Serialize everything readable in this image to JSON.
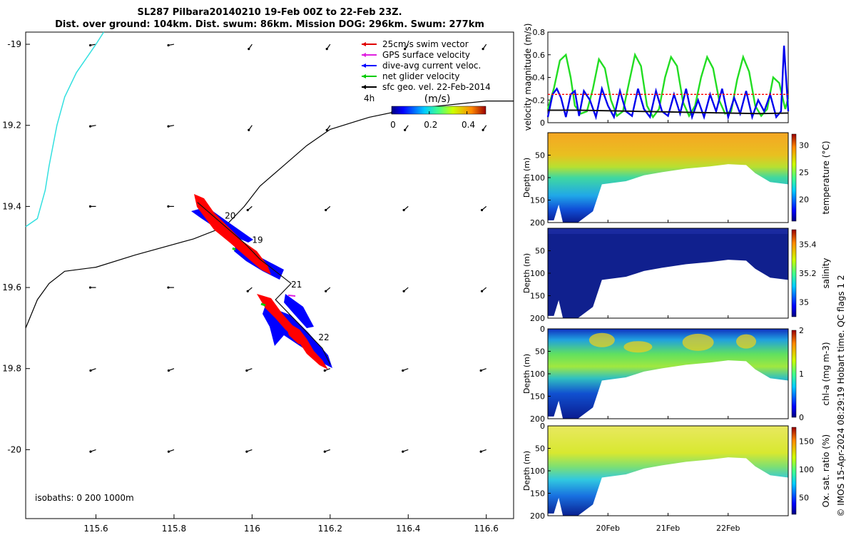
{
  "title": {
    "line1": "SL287 Pilbara20140210 19-Feb 00Z to 22-Feb 23Z.",
    "line2": "Dist. over ground: 104km. Dist. swum: 86km. Mission DOG: 296km. Swum: 277km"
  },
  "side_note": "© IMOS 15-Apr-2024 08:29:19 Hobart time. QC flags 1  2",
  "chart_data": [
    {
      "type": "scatter",
      "name": "track-map",
      "x_ticks": [
        "115.6",
        "115.8",
        "116",
        "116.2",
        "116.4",
        "116.6"
      ],
      "x_tick_values": [
        115.6,
        115.8,
        116.0,
        116.2,
        116.4,
        116.6
      ],
      "y_ticks": [
        "-19",
        "19.2",
        "19.4",
        "19.6",
        "19.8",
        "-20"
      ],
      "y_tick_values": [
        -19.0,
        -19.2,
        -19.4,
        -19.6,
        -19.8,
        -20.0
      ],
      "xlim": [
        115.42,
        116.67
      ],
      "ylim": [
        -20.17,
        -18.97
      ],
      "legend": {
        "placement": "top-right",
        "entries": [
          {
            "label": "25cm/s swim vector",
            "color": "#e00000"
          },
          {
            "label": "GPS surface velocity",
            "color": "#e020e0"
          },
          {
            "label": "dive-avg current veloc.",
            "color": "#0000ff"
          },
          {
            "label": "net glider velocity",
            "color": "#00cc00"
          },
          {
            "label": "sfc geo. vel. 22-Feb-2014",
            "color": "#000000"
          }
        ],
        "interval_label": "4h"
      },
      "colorbar": {
        "label": "(m/s)",
        "ticks": [
          "0",
          "0.2",
          "0.4"
        ],
        "tick_values": [
          0,
          0.2,
          0.4
        ],
        "range": [
          0,
          0.5
        ]
      },
      "isobath_label": "isobaths: 0   200  1000m",
      "day_labels": [
        {
          "text": "20",
          "lon": 115.93,
          "lat": -19.43
        },
        {
          "text": "19",
          "lon": 116.0,
          "lat": -19.49
        },
        {
          "text": "21",
          "lon": 116.1,
          "lat": -19.6
        },
        {
          "text": "22",
          "lon": 116.17,
          "lat": -19.73
        }
      ],
      "glider_track": [
        [
          115.86,
          -19.39
        ],
        [
          115.92,
          -19.44
        ],
        [
          115.98,
          -19.49
        ],
        [
          116.02,
          -19.53
        ],
        [
          116.06,
          -19.56
        ],
        [
          116.1,
          -19.59
        ],
        [
          116.06,
          -19.63
        ],
        [
          116.1,
          -19.67
        ],
        [
          116.14,
          -19.71
        ],
        [
          116.18,
          -19.75
        ],
        [
          116.2,
          -19.79
        ]
      ],
      "coastline_cyan": [
        [
          115.42,
          -19.45
        ],
        [
          115.45,
          -19.43
        ],
        [
          115.47,
          -19.36
        ],
        [
          115.48,
          -19.3
        ],
        [
          115.5,
          -19.2
        ],
        [
          115.52,
          -19.13
        ],
        [
          115.55,
          -19.07
        ],
        [
          115.6,
          -19.0
        ],
        [
          115.62,
          -18.97
        ]
      ],
      "isobath_black": [
        [
          115.42,
          -19.7
        ],
        [
          115.45,
          -19.63
        ],
        [
          115.48,
          -19.59
        ],
        [
          115.52,
          -19.56
        ],
        [
          115.6,
          -19.55
        ],
        [
          115.7,
          -19.52
        ],
        [
          115.85,
          -19.48
        ],
        [
          115.93,
          -19.45
        ],
        [
          115.98,
          -19.4
        ],
        [
          116.02,
          -19.35
        ],
        [
          116.08,
          -19.3
        ],
        [
          116.14,
          -19.25
        ],
        [
          116.2,
          -19.21
        ],
        [
          116.3,
          -19.18
        ],
        [
          116.4,
          -19.16
        ],
        [
          116.5,
          -19.15
        ],
        [
          116.6,
          -19.14
        ],
        [
          116.67,
          -19.14
        ]
      ]
    },
    {
      "type": "line",
      "name": "velocity-magnitude",
      "ylabel": "velocity magnitude (m/s)",
      "y_ticks": [
        "0",
        "0.2",
        "0.4",
        "0.6",
        "0.8"
      ],
      "y_tick_values": [
        0,
        0.2,
        0.4,
        0.6,
        0.8
      ],
      "ylim": [
        0,
        0.8
      ],
      "xlim": [
        0,
        4
      ],
      "series": [
        {
          "color": "#22dd22",
          "x": [
            0,
            0.1,
            0.2,
            0.3,
            0.38,
            0.45,
            0.55,
            0.65,
            0.75,
            0.85,
            0.95,
            1.05,
            1.15,
            1.25,
            1.35,
            1.45,
            1.55,
            1.65,
            1.75,
            1.85,
            1.95,
            2.05,
            2.15,
            2.25,
            2.35,
            2.45,
            2.55,
            2.65,
            2.75,
            2.85,
            2.95,
            3.05,
            3.15,
            3.25,
            3.35,
            3.45,
            3.55,
            3.65,
            3.75,
            3.85,
            3.95,
            4.0
          ],
          "values": [
            0.12,
            0.3,
            0.55,
            0.6,
            0.4,
            0.15,
            0.08,
            0.1,
            0.3,
            0.56,
            0.48,
            0.2,
            0.06,
            0.1,
            0.35,
            0.6,
            0.5,
            0.15,
            0.05,
            0.12,
            0.4,
            0.58,
            0.5,
            0.18,
            0.06,
            0.15,
            0.4,
            0.58,
            0.48,
            0.2,
            0.08,
            0.1,
            0.38,
            0.58,
            0.45,
            0.15,
            0.06,
            0.12,
            0.4,
            0.35,
            0.12,
            0.22
          ]
        },
        {
          "color": "#0000ee",
          "x": [
            0,
            0.08,
            0.15,
            0.22,
            0.3,
            0.38,
            0.45,
            0.52,
            0.6,
            0.7,
            0.8,
            0.9,
            1.0,
            1.1,
            1.2,
            1.3,
            1.4,
            1.5,
            1.6,
            1.7,
            1.8,
            1.9,
            2.0,
            2.1,
            2.2,
            2.3,
            2.4,
            2.5,
            2.6,
            2.7,
            2.8,
            2.9,
            3.0,
            3.1,
            3.2,
            3.3,
            3.4,
            3.5,
            3.6,
            3.7,
            3.8,
            3.88,
            3.93,
            4.0
          ],
          "values": [
            0.05,
            0.25,
            0.3,
            0.22,
            0.05,
            0.25,
            0.28,
            0.06,
            0.28,
            0.2,
            0.05,
            0.3,
            0.15,
            0.05,
            0.28,
            0.1,
            0.06,
            0.3,
            0.12,
            0.05,
            0.28,
            0.1,
            0.06,
            0.25,
            0.08,
            0.3,
            0.05,
            0.2,
            0.05,
            0.25,
            0.1,
            0.3,
            0.05,
            0.22,
            0.08,
            0.28,
            0.05,
            0.2,
            0.1,
            0.25,
            0.05,
            0.1,
            0.68,
            0.1
          ]
        },
        {
          "color": "#111111",
          "x": [
            0,
            0.5,
            1.0,
            1.5,
            2.0,
            2.5,
            3.0,
            3.5,
            4.0
          ],
          "values": [
            0.11,
            0.11,
            0.105,
            0.1,
            0.095,
            0.09,
            0.085,
            0.08,
            0.085
          ]
        },
        {
          "color": "#ff0000",
          "dashed": true,
          "x": [
            0,
            4.0
          ],
          "values": [
            0.25,
            0.25
          ]
        }
      ]
    },
    {
      "type": "heatmap",
      "name": "temperature-section",
      "ylabel": "Depth (m)",
      "y_ticks": [
        "50",
        "100",
        "150",
        "200"
      ],
      "y_tick_values": [
        50,
        100,
        150,
        200
      ],
      "ylim": [
        0,
        200
      ],
      "colorbar_label": "temperature (°C)",
      "colorbar_ticks": [
        "20",
        "25",
        "30"
      ],
      "colorbar_tick_values": [
        20,
        25,
        30
      ],
      "colorbar_range": [
        16,
        32
      ]
    },
    {
      "type": "heatmap",
      "name": "salinity-section",
      "ylabel": "Depth (m)",
      "y_ticks": [
        "50",
        "100",
        "150",
        "200"
      ],
      "y_tick_values": [
        50,
        100,
        150,
        200
      ],
      "ylim": [
        0,
        200
      ],
      "colorbar_label": "salinity",
      "colorbar_ticks": [
        "35",
        "35.2",
        "35.4"
      ],
      "colorbar_tick_values": [
        35.0,
        35.2,
        35.4
      ],
      "colorbar_range": [
        34.9,
        35.5
      ]
    },
    {
      "type": "heatmap",
      "name": "chla-section",
      "ylabel": "Depth (m)",
      "y_ticks": [
        "0",
        "50",
        "100",
        "150",
        "200"
      ],
      "y_tick_values": [
        0,
        50,
        100,
        150,
        200
      ],
      "ylim": [
        0,
        200
      ],
      "colorbar_label": "chl-a (mg m-3)",
      "colorbar_ticks": [
        "0",
        "1",
        "2"
      ],
      "colorbar_tick_values": [
        0,
        1,
        2
      ],
      "colorbar_range": [
        0,
        2
      ]
    },
    {
      "type": "heatmap",
      "name": "oxygen-section",
      "ylabel": "Depth (m)",
      "y_ticks": [
        "0",
        "50",
        "100",
        "150",
        "200"
      ],
      "y_tick_values": [
        0,
        50,
        100,
        150,
        200
      ],
      "ylim": [
        0,
        200
      ],
      "x_ticks": [
        "20Feb",
        "21Feb",
        "22Feb"
      ],
      "x_tick_values": [
        1,
        2,
        3
      ],
      "colorbar_label": "Ox. sat. ratio (%)",
      "colorbar_ticks": [
        "50",
        "100",
        "150"
      ],
      "colorbar_tick_values": [
        50,
        100,
        150
      ],
      "colorbar_range": [
        20,
        175
      ]
    }
  ],
  "colors": {
    "background": "#ffffff",
    "cyan_coast": "#33e0e0",
    "track_blue": "#0000ff",
    "track_red": "#ff0000"
  }
}
